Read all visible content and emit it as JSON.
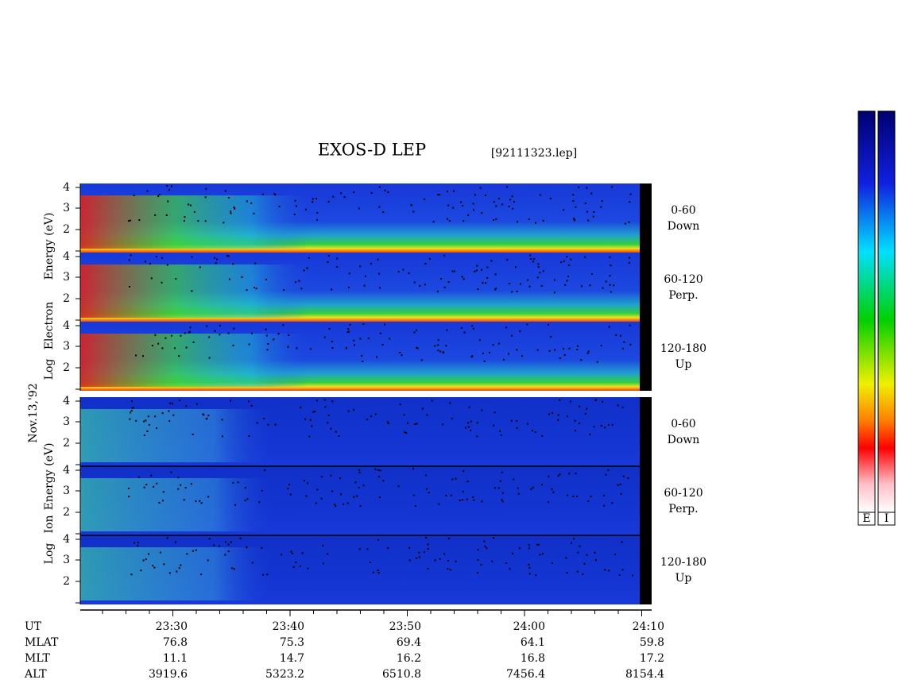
{
  "header": {
    "title": "EXOS-D LEP",
    "file": "[92111323.lep]"
  },
  "date": "Nov.13,'92",
  "electron": {
    "axis_label": [
      "Log",
      "Electron",
      "Energy (eV)"
    ],
    "panels": [
      {
        "range": "0-60",
        "direction": "Down"
      },
      {
        "range": "60-120",
        "direction": "Perp."
      },
      {
        "range": "120-180",
        "direction": "Up"
      }
    ]
  },
  "ion": {
    "axis_label": [
      "Log",
      "Ion",
      "Energy (eV)"
    ],
    "panels": [
      {
        "range": "0-60",
        "direction": "Down"
      },
      {
        "range": "60-120",
        "direction": "Perp."
      },
      {
        "range": "120-180",
        "direction": "Up"
      }
    ]
  },
  "energy_ticks": [
    "4",
    "3",
    "2"
  ],
  "ephemeris": {
    "rows": [
      {
        "name": "UT",
        "values": [
          "23:30",
          "23:40",
          "23:50",
          "24:00",
          "24:10"
        ]
      },
      {
        "name": "MLAT",
        "values": [
          "76.8",
          "75.3",
          "69.4",
          "64.1",
          "59.8"
        ]
      },
      {
        "name": "MLT",
        "values": [
          "11.1",
          "14.7",
          "16.2",
          "16.8",
          "17.2"
        ]
      },
      {
        "name": "ALT",
        "values": [
          "3919.6",
          "5323.2",
          "6510.8",
          "7456.4",
          "8154.4"
        ]
      }
    ]
  },
  "colorbar": {
    "labels": [
      "E",
      "I"
    ]
  }
}
